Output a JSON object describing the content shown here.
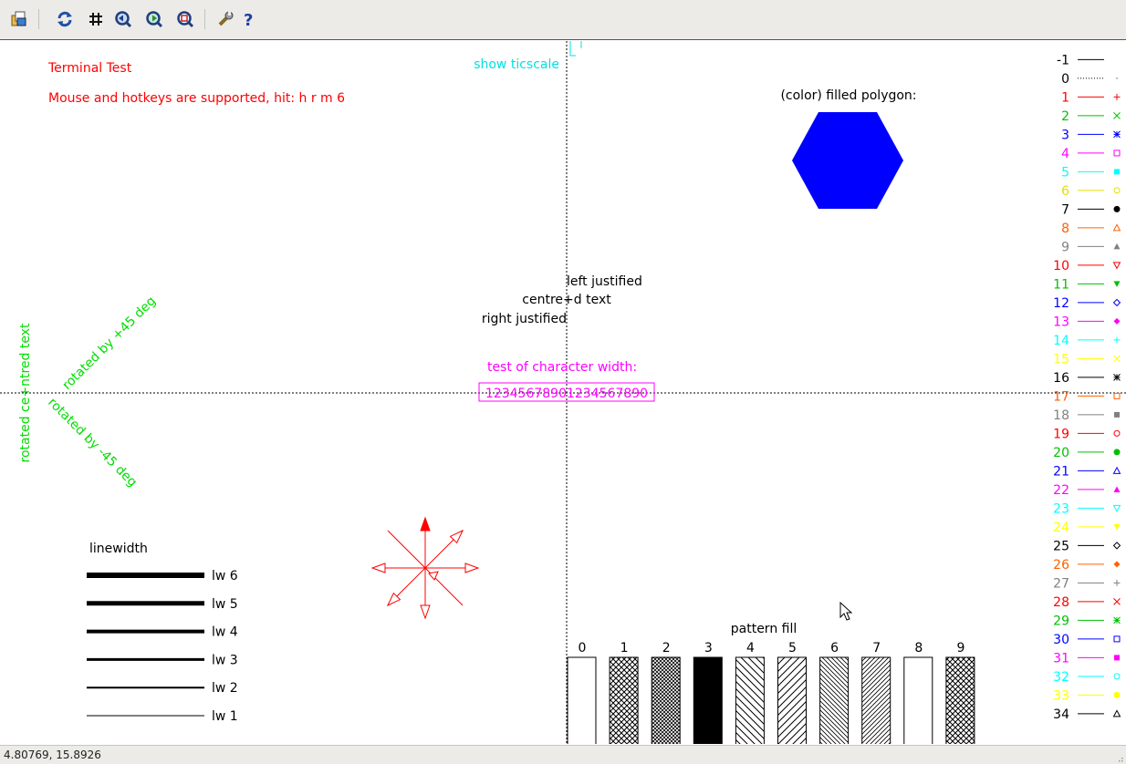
{
  "toolbar": {
    "icons": [
      "copy-to-clipboard-icon",
      "replot-icon",
      "grid-icon",
      "previous-zoom-icon",
      "next-zoom-icon",
      "unzoom-icon",
      "configure-icon",
      "help-icon"
    ]
  },
  "plot": {
    "title": "Terminal Test",
    "hotkeys": "Mouse and hotkeys are supported, hit: h r m 6",
    "ticscale": "show ticscale",
    "polygon_label": "(color) filled polygon:",
    "left_justified": "left justified",
    "centred": "centre+d text",
    "right_justified": "right justified",
    "char_width_label": "test of character width:",
    "char_width_sample": "12345678901234567890",
    "rot_plus45": "rotated by +45 deg",
    "rot_minus45": "rotated by -45 deg",
    "rot_centred": "rotated ce+ntred text",
    "linewidth_label": "linewidth",
    "linewidths": [
      {
        "label": "lw 6",
        "w": 6
      },
      {
        "label": "lw 5",
        "w": 5
      },
      {
        "label": "lw 4",
        "w": 4
      },
      {
        "label": "lw 3",
        "w": 3
      },
      {
        "label": "lw 2",
        "w": 2
      },
      {
        "label": "lw 1",
        "w": 1
      }
    ],
    "pattern_label": "pattern fill",
    "patterns": [
      "0",
      "1",
      "2",
      "3",
      "4",
      "5",
      "6",
      "7",
      "8",
      "9"
    ],
    "polygon_color": "#0000ff",
    "arrow_color": "#ff0000",
    "legend": [
      {
        "n": "-1",
        "color": "#000000",
        "sym": "none"
      },
      {
        "n": "0",
        "color": "#000000",
        "sym": "dot"
      },
      {
        "n": "1",
        "color": "#ff0000",
        "sym": "plus"
      },
      {
        "n": "2",
        "color": "#00c000",
        "sym": "cross"
      },
      {
        "n": "3",
        "color": "#0000ff",
        "sym": "star"
      },
      {
        "n": "4",
        "color": "#ff00ff",
        "sym": "box"
      },
      {
        "n": "5",
        "color": "#00ffff",
        "sym": "fbox"
      },
      {
        "n": "6",
        "color": "#e0e000",
        "sym": "circle"
      },
      {
        "n": "7",
        "color": "#000000",
        "sym": "fcircle"
      },
      {
        "n": "8",
        "color": "#ff6000",
        "sym": "tri"
      },
      {
        "n": "9",
        "color": "#808080",
        "sym": "ftri"
      },
      {
        "n": "10",
        "color": "#ff0000",
        "sym": "itri"
      },
      {
        "n": "11",
        "color": "#00c000",
        "sym": "fitri"
      },
      {
        "n": "12",
        "color": "#0000ff",
        "sym": "diamond"
      },
      {
        "n": "13",
        "color": "#ff00ff",
        "sym": "fdiamond"
      },
      {
        "n": "14",
        "color": "#00ffff",
        "sym": "plus"
      },
      {
        "n": "15",
        "color": "#ffff00",
        "sym": "cross"
      },
      {
        "n": "16",
        "color": "#000000",
        "sym": "star"
      },
      {
        "n": "17",
        "color": "#ff6000",
        "sym": "box"
      },
      {
        "n": "18",
        "color": "#808080",
        "sym": "fbox"
      },
      {
        "n": "19",
        "color": "#ff0000",
        "sym": "circle"
      },
      {
        "n": "20",
        "color": "#00c000",
        "sym": "fcircle"
      },
      {
        "n": "21",
        "color": "#0000ff",
        "sym": "tri"
      },
      {
        "n": "22",
        "color": "#ff00ff",
        "sym": "ftri"
      },
      {
        "n": "23",
        "color": "#00ffff",
        "sym": "itri"
      },
      {
        "n": "24",
        "color": "#ffff00",
        "sym": "fitri"
      },
      {
        "n": "25",
        "color": "#000000",
        "sym": "diamond"
      },
      {
        "n": "26",
        "color": "#ff6000",
        "sym": "fdiamond"
      },
      {
        "n": "27",
        "color": "#808080",
        "sym": "plus"
      },
      {
        "n": "28",
        "color": "#ff0000",
        "sym": "cross"
      },
      {
        "n": "29",
        "color": "#00c000",
        "sym": "star"
      },
      {
        "n": "30",
        "color": "#0000ff",
        "sym": "box"
      },
      {
        "n": "31",
        "color": "#ff00ff",
        "sym": "fbox"
      },
      {
        "n": "32",
        "color": "#00ffff",
        "sym": "circle"
      },
      {
        "n": "33",
        "color": "#ffff00",
        "sym": "fcircle"
      },
      {
        "n": "34",
        "color": "#000000",
        "sym": "tri"
      }
    ]
  },
  "status": {
    "coords": "4.80769, 15.8926"
  }
}
